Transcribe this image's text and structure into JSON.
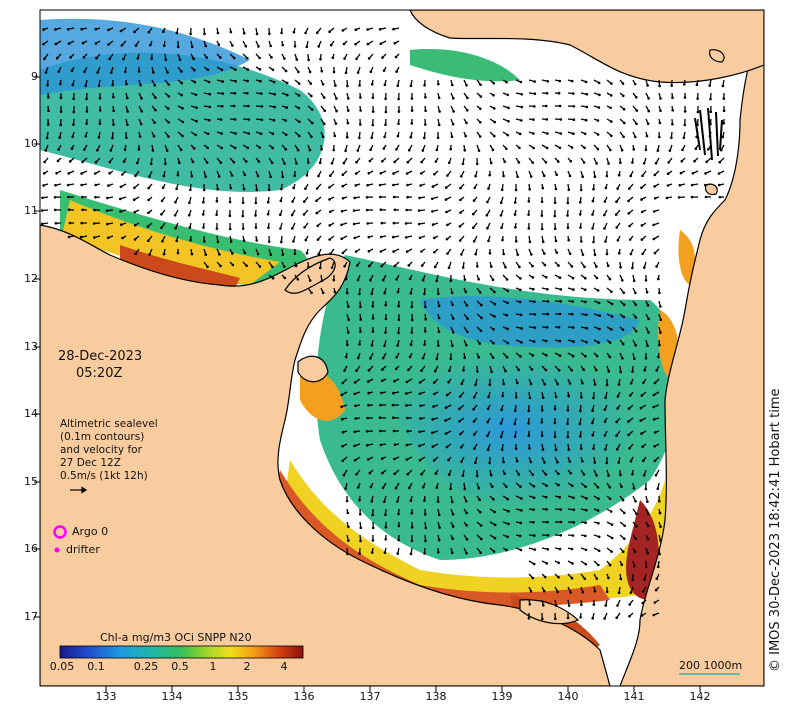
{
  "date": {
    "line1": "28-Dec-2023",
    "line2": "05:20Z"
  },
  "altimetry": {
    "lines": [
      "Altimetric sealevel",
      "(0.1m contours)",
      "and velocity for",
      "27 Dec 12Z",
      "0.5m/s (1kt 12h)"
    ]
  },
  "legend": {
    "argo_label": "Argo 0",
    "drifter_label": "drifter",
    "argo_color": "#ff00ff",
    "drifter_color": "#ff00ff"
  },
  "colorbar": {
    "title": "Chl-a mg/m3 OCi SNPP N20",
    "ticks": [
      "0.05",
      "0.1",
      "0.25",
      "0.5",
      "1",
      "2",
      "4"
    ]
  },
  "scale_bar": {
    "label": "200  1000m"
  },
  "credit": "© IMOS 30-Dec-2023 18:42:41 Hobart time",
  "axes": {
    "x_ticks": [
      "133",
      "134",
      "135",
      "136",
      "137",
      "138",
      "139",
      "140",
      "141",
      "142"
    ],
    "y_ticks": [
      "9",
      "10",
      "11",
      "12",
      "13",
      "14",
      "15",
      "16",
      "17"
    ]
  },
  "colors": {
    "land": "#f9cc9f",
    "ocean": "#ffffff",
    "chl_low": "#1d7bd6",
    "chl_mid": "#2fb88a",
    "chl_high": "#e8d316",
    "chl_max": "#a01818"
  }
}
